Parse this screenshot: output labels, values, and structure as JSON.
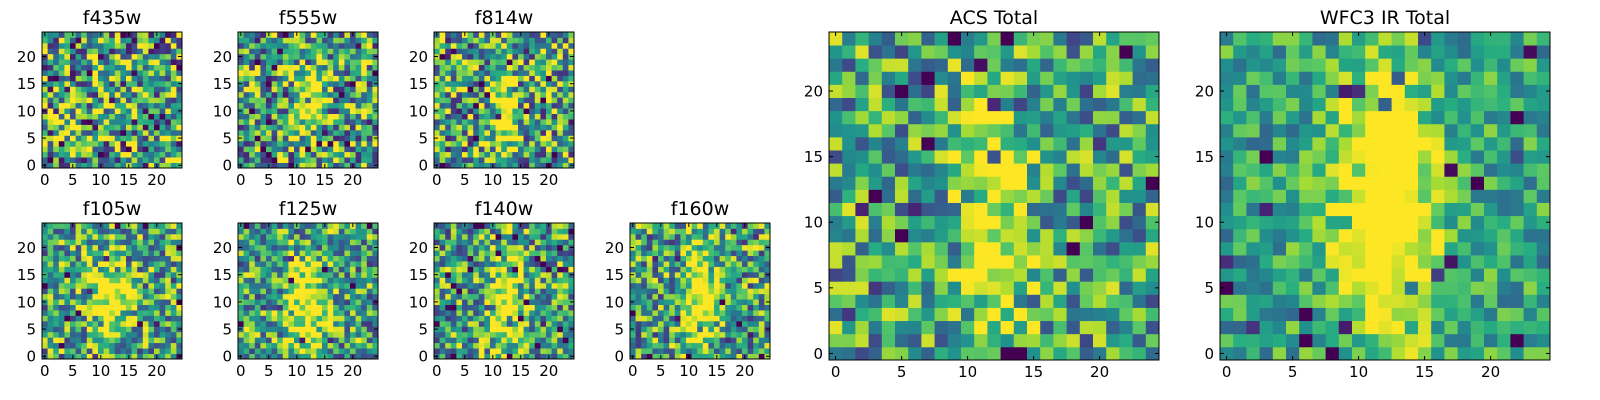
{
  "figure": {
    "note": "Grid of HST filter cutout heatmaps (25x25 pixels, viridis colormap)"
  },
  "colors": {
    "viridis": [
      "#440154",
      "#472c7a",
      "#3b518b",
      "#2c718e",
      "#21908d",
      "#27ad81",
      "#5cc863",
      "#aadc32",
      "#fde725"
    ],
    "frame": "#000000",
    "background": "#ffffff"
  },
  "chart_data": [
    {
      "id": "f435w",
      "type": "heatmap",
      "title": "f435w",
      "grid": [
        25,
        25
      ],
      "xlim": [
        0,
        24
      ],
      "ylim": [
        0,
        24
      ],
      "xticks": [
        0,
        5,
        10,
        15,
        20
      ],
      "yticks": [
        0,
        5,
        10,
        15,
        20
      ],
      "seed": 11,
      "noise": 0.55,
      "source": null
    },
    {
      "id": "f555w",
      "type": "heatmap",
      "title": "f555w",
      "grid": [
        25,
        25
      ],
      "xlim": [
        0,
        24
      ],
      "ylim": [
        0,
        24
      ],
      "xticks": [
        0,
        5,
        10,
        15,
        20
      ],
      "yticks": [
        0,
        5,
        10,
        15,
        20
      ],
      "seed": 23,
      "noise": 0.5,
      "source": [
        12,
        12,
        0.4,
        2.2,
        6
      ]
    },
    {
      "id": "f814w",
      "type": "heatmap",
      "title": "f814w",
      "grid": [
        25,
        25
      ],
      "xlim": [
        0,
        24
      ],
      "ylim": [
        0,
        24
      ],
      "xticks": [
        0,
        5,
        10,
        15,
        20
      ],
      "yticks": [
        0,
        5,
        10,
        15,
        20
      ],
      "seed": 37,
      "noise": 0.5,
      "source": [
        12,
        10,
        0.55,
        1.6,
        7
      ]
    },
    {
      "id": "f105w",
      "type": "heatmap",
      "title": "f105w",
      "grid": [
        25,
        25
      ],
      "xlim": [
        0,
        24
      ],
      "ylim": [
        0,
        24
      ],
      "xticks": [
        0,
        5,
        10,
        15,
        20
      ],
      "yticks": [
        0,
        5,
        10,
        15,
        20
      ],
      "seed": 41,
      "noise": 0.42,
      "source": [
        12,
        11,
        0.6,
        2.4,
        5
      ]
    },
    {
      "id": "f125w",
      "type": "heatmap",
      "title": "f125w",
      "grid": [
        25,
        25
      ],
      "xlim": [
        0,
        24
      ],
      "ylim": [
        0,
        24
      ],
      "xticks": [
        0,
        5,
        10,
        15,
        20
      ],
      "yticks": [
        0,
        5,
        10,
        15,
        20
      ],
      "seed": 53,
      "noise": 0.42,
      "source": [
        12,
        9,
        0.6,
        2.4,
        6
      ]
    },
    {
      "id": "f140w",
      "type": "heatmap",
      "title": "f140w",
      "grid": [
        25,
        25
      ],
      "xlim": [
        0,
        24
      ],
      "ylim": [
        0,
        24
      ],
      "xticks": [
        0,
        5,
        10,
        15,
        20
      ],
      "yticks": [
        0,
        5,
        10,
        15,
        20
      ],
      "seed": 67,
      "noise": 0.42,
      "source": [
        12,
        10,
        0.6,
        2.0,
        6
      ]
    },
    {
      "id": "f160w",
      "type": "heatmap",
      "title": "f160w",
      "grid": [
        25,
        25
      ],
      "xlim": [
        0,
        24
      ],
      "ylim": [
        0,
        24
      ],
      "xticks": [
        0,
        5,
        10,
        15,
        20
      ],
      "yticks": [
        0,
        5,
        10,
        15,
        20
      ],
      "seed": 79,
      "noise": 0.42,
      "source": [
        12,
        11,
        0.65,
        1.8,
        7
      ]
    },
    {
      "id": "acs-total",
      "type": "heatmap",
      "title": "ACS Total",
      "grid": [
        25,
        25
      ],
      "xlim": [
        0,
        24
      ],
      "ylim": [
        0,
        24
      ],
      "xticks": [
        0,
        5,
        10,
        15,
        20
      ],
      "yticks": [
        0,
        5,
        10,
        15,
        20
      ],
      "seed": 97,
      "noise": 0.38,
      "source": [
        12,
        9,
        0.5,
        1.6,
        8
      ]
    },
    {
      "id": "wfc3-ir-total",
      "type": "heatmap",
      "title": "WFC3 IR Total",
      "grid": [
        25,
        25
      ],
      "xlim": [
        0,
        24
      ],
      "ylim": [
        0,
        24
      ],
      "xticks": [
        0,
        5,
        10,
        15,
        20
      ],
      "yticks": [
        0,
        5,
        10,
        15,
        20
      ],
      "seed": 113,
      "noise": 0.25,
      "source": [
        12,
        11,
        0.75,
        2.6,
        7
      ]
    }
  ]
}
